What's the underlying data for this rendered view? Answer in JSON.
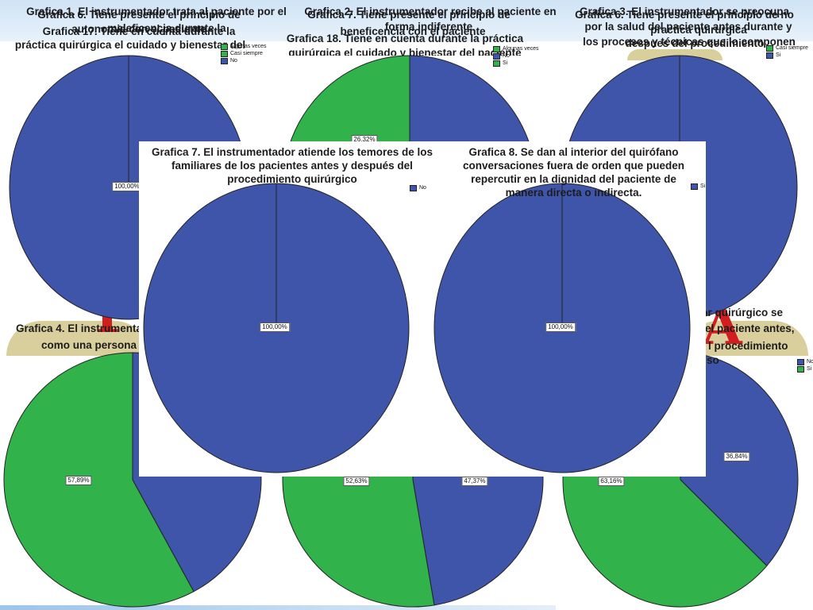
{
  "colors": {
    "blue": "#3f55aa",
    "green": "#31b24a",
    "outline": "#222222"
  },
  "background_text": {
    "grafica1": "Grafica 1. El instrumentador trata al paciente por el",
    "grafica2": "Grafica 2. El instrumentador recibe al paciente en",
    "grafica3": "Grafica 3. El instrumentador se preocupa",
    "grafica6_a": "Grafica 6. Tiene presente el principio de",
    "grafica6_b": "Grafica 6. Tiene presente el principio de no",
    "grafica7": "Grafica 7. Tiene presente el principio de",
    "frag1": "autonomia con el paciente",
    "frag2": "forma indiferente",
    "frag3": "por la salud del paciente antes durante y",
    "frag4": "maleficencia durante la",
    "frag5": "beneficencia con el paciente",
    "frag6": "practica quirurgica",
    "frag7": "despues del procedimiento",
    "frag8": "los procesos y técnicas que lo componen",
    "frag9": "bienestar del paciente después del procedimiento",
    "frag10": "Grafica 17. Tiene en cuenta durante la",
    "frag11": "práctica quirúrgica el cuidado y bienestar del",
    "frag12": "Grafica 18. Tiene en cuenta durante la práctica",
    "frag13": "quirúrgica el cuidado y bienestar del paciente",
    "frag14": "Grafica 4. El instrumentador trata al paciente",
    "frag15": "como una persona",
    "frag16": "dor quirúrgico se",
    "frag17": "el paciente antes,",
    "frag18": "l procedimiento",
    "frag19": "so"
  },
  "decor": {
    "letter_left": "P",
    "letter_right": "A"
  },
  "chart_data": [
    {
      "type": "pie",
      "title": "",
      "legend": [
        {
          "label": "Algunas veces",
          "color": "#31b24a"
        },
        {
          "label": "Casi siempre",
          "color": "#31b24a"
        },
        {
          "label": "No",
          "color": "#3f55aa"
        }
      ],
      "slices": [
        {
          "label": "No",
          "value": 100.0,
          "color": "#3f55aa"
        }
      ],
      "labels": [
        "100,00%"
      ]
    },
    {
      "type": "pie",
      "title": "",
      "legend": [
        {
          "label": "Algunas veces",
          "color": "#31b24a"
        },
        {
          "label": "No",
          "color": "#3f55aa"
        },
        {
          "label": "Si",
          "color": "#31b24a"
        }
      ],
      "slices": [
        {
          "label": "No",
          "value": 73.68,
          "color": "#3f55aa"
        },
        {
          "label": "Si",
          "value": 26.32,
          "color": "#31b24a"
        }
      ],
      "labels": [
        "26,32%"
      ]
    },
    {
      "type": "pie",
      "title": "",
      "legend": [
        {
          "label": "Casi siempre",
          "color": "#31b24a"
        },
        {
          "label": "Si",
          "color": "#3f55aa"
        }
      ],
      "slices": [
        {
          "label": "Si",
          "value": 100.0,
          "color": "#3f55aa"
        }
      ],
      "labels": []
    },
    {
      "type": "pie",
      "title": "",
      "legend": [],
      "slices": [
        {
          "label": "No",
          "value": 42.11,
          "color": "#3f55aa"
        },
        {
          "label": "Si",
          "value": 57.89,
          "color": "#31b24a"
        }
      ],
      "labels": [
        "57,89%"
      ]
    },
    {
      "type": "pie",
      "title": "",
      "legend": [],
      "slices": [
        {
          "label": "No",
          "value": 47.37,
          "color": "#3f55aa"
        },
        {
          "label": "Si",
          "value": 52.63,
          "color": "#31b24a"
        }
      ],
      "labels": [
        "52,63%",
        "47,37%"
      ]
    },
    {
      "type": "pie",
      "title": "",
      "legend": [
        {
          "label": "No",
          "color": "#3f55aa"
        },
        {
          "label": "Si",
          "color": "#31b24a"
        }
      ],
      "slices": [
        {
          "label": "No",
          "value": 36.84,
          "color": "#3f55aa"
        },
        {
          "label": "Si",
          "value": 63.16,
          "color": "#31b24a"
        }
      ],
      "labels": [
        "63,16%",
        "36,84%"
      ]
    },
    {
      "type": "pie",
      "title": "Grafica 7. El instrumentador atiende los temores de los familiares de los pacientes antes y después del procedimiento quirúrgico",
      "legend": [
        {
          "label": "No",
          "color": "#3f55aa"
        }
      ],
      "slices": [
        {
          "label": "No",
          "value": 100.0,
          "color": "#3f55aa"
        }
      ],
      "labels": [
        "100,00%"
      ]
    },
    {
      "type": "pie",
      "title": "Grafica 8.  Se dan al interior del quirófano conversaciones fuera de orden que pueden repercutir en la dignidad del paciente de manera directa o indirecta.",
      "legend": [
        {
          "label": "Si",
          "color": "#3f55aa"
        }
      ],
      "slices": [
        {
          "label": "Si",
          "value": 100.0,
          "color": "#3f55aa"
        }
      ],
      "labels": [
        "100,00%"
      ]
    }
  ]
}
